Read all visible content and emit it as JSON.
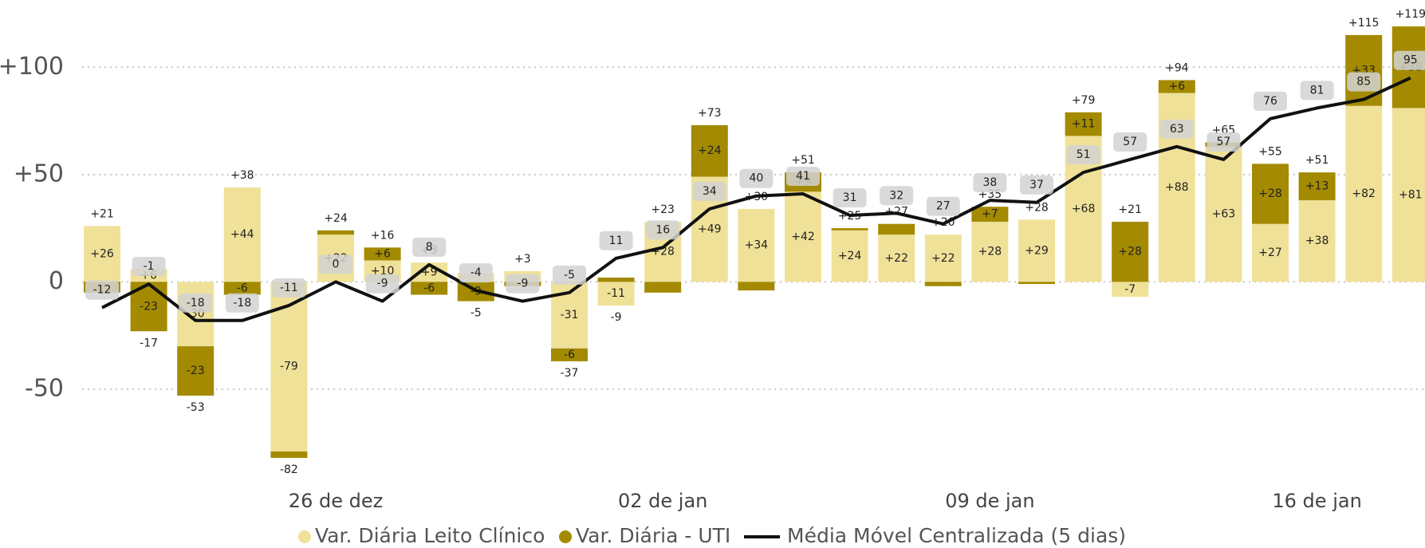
{
  "chart_data": {
    "type": "bar",
    "stacked": true,
    "categories": [
      null,
      null,
      null,
      null,
      null,
      "26 de dez",
      null,
      null,
      null,
      null,
      null,
      null,
      "02 de jan",
      null,
      null,
      null,
      null,
      null,
      null,
      "09 de jan",
      null,
      null,
      null,
      null,
      null,
      null,
      "16 de jan",
      null,
      null
    ],
    "series": [
      {
        "name": "Var. Diária Leito Clínico",
        "color": "#f0e199",
        "values": [
          26,
          6,
          -30,
          44,
          -79,
          22,
          10,
          9,
          4,
          5,
          -31,
          -11,
          28,
          49,
          34,
          42,
          24,
          22,
          22,
          28,
          29,
          68,
          -7,
          88,
          63,
          27,
          38,
          82,
          81
        ],
        "value_labels": [
          "+26",
          "+6",
          "-30",
          "+44",
          "-79",
          "+22",
          "+10",
          "+9",
          "+4",
          "+5",
          "-31",
          "-11",
          "+28",
          "+49",
          "+34",
          "+42",
          "+24",
          "+22",
          "+22",
          "+28",
          "+29",
          "+68",
          "-7",
          "+88",
          "+63",
          "+27",
          "+38",
          "+82",
          "+81"
        ]
      },
      {
        "name": "Var. Diária - UTI",
        "color": "#a38a00",
        "values": [
          -5,
          -23,
          -23,
          -6,
          -3,
          2,
          6,
          -6,
          -9,
          -2,
          -6,
          2,
          -5,
          24,
          -4,
          9,
          1,
          5,
          -2,
          7,
          -1,
          11,
          28,
          6,
          2,
          28,
          13,
          33,
          38
        ],
        "value_labels": [
          "-5",
          "-23",
          "-23",
          "-6",
          "-3",
          "+2",
          "+6",
          "-6",
          "-9",
          "-2",
          "-6",
          "+2",
          "-5",
          "+24",
          "-4",
          "+9",
          "+1",
          "+5",
          "-2",
          "+7",
          "-1",
          "+11",
          "+28",
          "+6",
          "+2",
          "+28",
          "+13",
          "+33",
          "+38"
        ]
      },
      {
        "name": "Média Móvel Centralizada (5 dias)",
        "type": "line",
        "color": "#111111",
        "values": [
          -12,
          -1,
          -18,
          -18,
          -11,
          0,
          -9,
          8,
          -4,
          -9,
          -5,
          11,
          16,
          34,
          40,
          41,
          31,
          32,
          27,
          38,
          37,
          51,
          57,
          63,
          57,
          76,
          81,
          85,
          95
        ]
      }
    ],
    "totals": {
      "values": [
        21,
        -17,
        -53,
        38,
        -82,
        24,
        16,
        3,
        -5,
        3,
        -37,
        -9,
        23,
        73,
        30,
        51,
        25,
        27,
        20,
        35,
        28,
        79,
        21,
        94,
        65,
        55,
        51,
        115,
        119
      ],
      "value_labels": [
        "+21",
        "-17",
        "-53",
        "+38",
        "-82",
        "+24",
        "+16",
        "+3",
        "-5",
        "+3",
        "-37",
        "-9",
        "+23",
        "+73",
        "+30",
        "+51",
        "+25",
        "+27",
        "+20",
        "+35",
        "+28",
        "+79",
        "+21",
        "+94",
        "+65",
        "+55",
        "+51",
        "+115",
        "+119"
      ]
    },
    "ylim": [
      -95,
      125
    ],
    "yticks": [
      {
        "value": 100,
        "label": "+100"
      },
      {
        "value": 50,
        "label": "+50"
      },
      0,
      -50
    ],
    "grid": true
  }
}
